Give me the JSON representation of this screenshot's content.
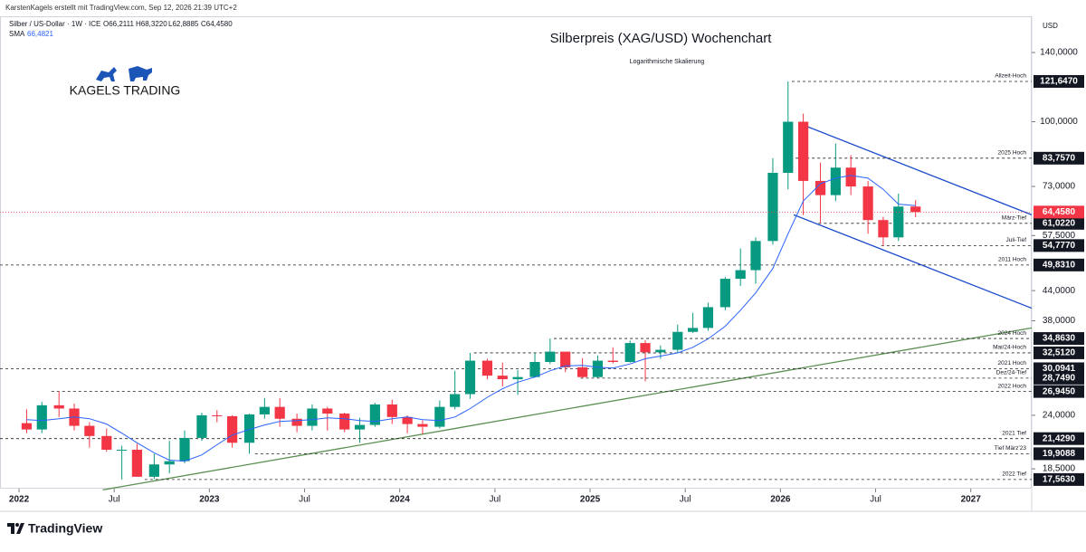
{
  "chart_data": {
    "type": "candlestick",
    "title": "Silberpreis (XAG/USD) Wochenchart",
    "subtitle": "Logarithmische Skalierung",
    "attribution": "KarstenKagels erstellt mit TradingView.com, Sep 12, 2026 21:39 UTC+2",
    "symbol": "Silber / US-Dollar · 1W · ICE",
    "ohlc_labels": [
      "O66,2111",
      "H68,3220",
      "L62,8885",
      "C64,4580"
    ],
    "currency": "USD",
    "brand": "KAGELS TRADING",
    "footer": "TradingView",
    "log_scale": true,
    "up_color": "#089981",
    "down_color": "#f23645",
    "xlim": [
      2021.9,
      2027.32
    ],
    "ylim": [
      16.8,
      152.9
    ],
    "xticks": [
      {
        "value": 2022,
        "label": "2022"
      },
      {
        "value": 2022.5,
        "label": "Jul"
      },
      {
        "value": 2023,
        "label": "2023"
      },
      {
        "value": 2023.5,
        "label": "Jul"
      },
      {
        "value": 2024,
        "label": "2024"
      },
      {
        "value": 2024.5,
        "label": "Jul"
      },
      {
        "value": 2025,
        "label": "2025"
      },
      {
        "value": 2025.5,
        "label": "Jul"
      },
      {
        "value": 2026,
        "label": "2026"
      },
      {
        "value": 2026.5,
        "label": "Jul"
      },
      {
        "value": 2027,
        "label": "2027"
      }
    ],
    "yticks": [
      {
        "value": 140,
        "label": "140,0000"
      },
      {
        "value": 100,
        "label": "100,0000"
      },
      {
        "value": 73,
        "label": "73,0000"
      },
      {
        "value": 57.5,
        "label": "57,5000"
      },
      {
        "value": 44,
        "label": "44,0000"
      },
      {
        "value": 38,
        "label": "38,0000"
      },
      {
        "value": 24,
        "label": "24,0000"
      },
      {
        "value": 18.5,
        "label": "18,5000"
      }
    ],
    "x": [
      2022.04,
      2022.12,
      2022.21,
      2022.29,
      2022.37,
      2022.46,
      2022.54,
      2022.62,
      2022.71,
      2022.79,
      2022.87,
      2022.96,
      2023.04,
      2023.12,
      2023.21,
      2023.29,
      2023.37,
      2023.46,
      2023.54,
      2023.62,
      2023.71,
      2023.79,
      2023.87,
      2023.96,
      2024.04,
      2024.12,
      2024.21,
      2024.29,
      2024.37,
      2024.46,
      2024.54,
      2024.62,
      2024.71,
      2024.79,
      2024.87,
      2024.96,
      2025.04,
      2025.12,
      2025.21,
      2025.29,
      2025.37,
      2025.46,
      2025.54,
      2025.62,
      2025.71,
      2025.79,
      2025.87,
      2025.96,
      2026.04,
      2026.12,
      2026.21,
      2026.29,
      2026.37,
      2026.46,
      2026.54,
      2026.62,
      2026.71
    ],
    "open": [
      23.1,
      22.4,
      25.2,
      24.8,
      22.8,
      21.7,
      20.3,
      20.3,
      17.8,
      18.9,
      19.2,
      21.5,
      24.0,
      23.9,
      21.0,
      24.1,
      25.0,
      23.6,
      22.8,
      24.8,
      24.2,
      22.4,
      22.9,
      25.3,
      23.8,
      23.0,
      22.7,
      25.0,
      26.6,
      31.3,
      29.1,
      28.6,
      28.9,
      31.1,
      32.7,
      30.3,
      28.9,
      31.3,
      31.1,
      34.1,
      32.6,
      33.0,
      36.0,
      36.7,
      40.6,
      46.6,
      48.6,
      56.0,
      78,
      100,
      75,
      70,
      80,
      73,
      62,
      57,
      66.2111
    ],
    "high": [
      24.7,
      25.6,
      26.945,
      25.4,
      23.2,
      22.5,
      20.7,
      20.9,
      19.9,
      21.2,
      22.3,
      24.3,
      24.6,
      24.0,
      24.2,
      26.1,
      26.1,
      24.2,
      25.3,
      25.0,
      24.3,
      23.7,
      25.5,
      25.9,
      24.0,
      23.4,
      25.8,
      29.8,
      32.5,
      31.6,
      31.0,
      29.9,
      32.5,
      34.863,
      32.2,
      31.7,
      32.1,
      33.4,
      34.5,
      34.6,
      33.7,
      37.3,
      39.5,
      41.5,
      47.0,
      54.0,
      57.0,
      83.757,
      121.647,
      104,
      82,
      90,
      85,
      75,
      63,
      70.5,
      68.322
    ],
    "low": [
      22.0,
      22.0,
      23.8,
      22.3,
      20.5,
      20.1,
      17.563,
      17.8,
      17.6,
      18.1,
      19.0,
      21.2,
      23.2,
      20.5,
      19.9088,
      23.6,
      22.7,
      22.1,
      22.3,
      22.3,
      22.1,
      21.0,
      22.7,
      23.0,
      22.0,
      21.9,
      22.5,
      24.7,
      26.0,
      28.6,
      27.6,
      26.5,
      28.8,
      30.8,
      29.6,
      28.749,
      28.8,
      30.9,
      31.0,
      28.3,
      31.6,
      32.5,
      35.8,
      36.2,
      40.0,
      45.0,
      45.5,
      55.0,
      72,
      63.5,
      61.022,
      68,
      70,
      58,
      54.777,
      56,
      62.8885
    ],
    "close": [
      22.4,
      25.2,
      24.8,
      22.8,
      21.7,
      20.3,
      20.3,
      17.8,
      18.9,
      19.2,
      21.5,
      24.0,
      23.9,
      21.0,
      24.1,
      25.0,
      23.6,
      22.8,
      24.8,
      24.2,
      22.4,
      22.9,
      25.3,
      23.8,
      23.0,
      22.7,
      25.0,
      26.6,
      31.3,
      29.1,
      28.6,
      28.9,
      31.1,
      32.7,
      30.3,
      28.9,
      31.3,
      31.1,
      34.1,
      32.6,
      33.0,
      36.0,
      36.7,
      40.6,
      46.6,
      48.6,
      56.0,
      78,
      100,
      75,
      70,
      80,
      73,
      62,
      57,
      66.2,
      64.458
    ],
    "sma": {
      "name": "SMA",
      "value_label": "66,4821",
      "color": "#2962ff",
      "values": [
        23.5,
        23.4,
        23.6,
        23.8,
        23.6,
        23.0,
        22.0,
        21.0,
        20.0,
        19.3,
        19.2,
        19.8,
        20.8,
        21.8,
        22.4,
        22.9,
        23.3,
        23.4,
        23.5,
        23.7,
        23.6,
        23.4,
        23.3,
        23.6,
        23.8,
        23.5,
        23.4,
        23.8,
        24.8,
        26.2,
        27.3,
        28.2,
        28.9,
        29.8,
        30.5,
        30.6,
        30.3,
        30.2,
        30.8,
        31.6,
        32.0,
        32.5,
        33.4,
        34.8,
        37.0,
        40.0,
        43.5,
        49,
        58,
        68,
        74,
        76,
        77,
        76,
        72,
        67,
        66.4821
      ]
    },
    "last_price": {
      "value": 64.458,
      "label": "64,4580",
      "color": "#f23645"
    },
    "levels": [
      {
        "value": 121.647,
        "label": "121,6470",
        "note": "Allzeit-Hoch",
        "start": 2026.06
      },
      {
        "value": 83.757,
        "label": "83,7570",
        "note": "2025 Hoch",
        "start": 2026.08
      },
      {
        "value": 61.022,
        "label": "61,0220",
        "note": "März-Tief",
        "start": 2026.2
      },
      {
        "value": 54.777,
        "label": "54,7770",
        "note": "Juli-Tief",
        "start": 2026.53
      },
      {
        "value": 49.831,
        "label": "49,8310",
        "note": "2011 Hoch",
        "start": 2021.9
      },
      {
        "value": 34.863,
        "label": "34,8630",
        "note": "2024 Hoch",
        "start": 2024.81
      },
      {
        "value": 32.512,
        "label": "32,5120",
        "note": "Mai/24-Hoch",
        "start": 2024.39
      },
      {
        "value": 30.0941,
        "label": "30,0941",
        "note": "2021 Hoch",
        "start": 2021.9
      },
      {
        "value": 28.749,
        "label": "28,7490",
        "note": "Dez/24-Tief",
        "start": 2024.95
      },
      {
        "value": 26.945,
        "label": "26,9450",
        "note": "2022 Hoch",
        "start": 2022.17
      },
      {
        "value": 21.429,
        "label": "21,4290",
        "note": "2021 Tief",
        "start": 2021.9
      },
      {
        "value": 19.9088,
        "label": "19,9088",
        "note": "Tief März'23",
        "start": 2023.24
      },
      {
        "value": 17.563,
        "label": "17,5630",
        "note": "2022 Tief",
        "start": 2022.66
      }
    ],
    "trendlines": [
      {
        "x": [
          2026.12,
          2027.32
        ],
        "y": [
          98.4,
          63.6
        ],
        "color": "#1848cc"
      },
      {
        "x": [
          2026.07,
          2027.32
        ],
        "y": [
          63.6,
          40.4
        ],
        "color": "#1848cc"
      },
      {
        "x": [
          2022.44,
          2027.32
        ],
        "y": [
          16.7,
          36.7
        ],
        "color": "#5b8f52"
      }
    ]
  }
}
